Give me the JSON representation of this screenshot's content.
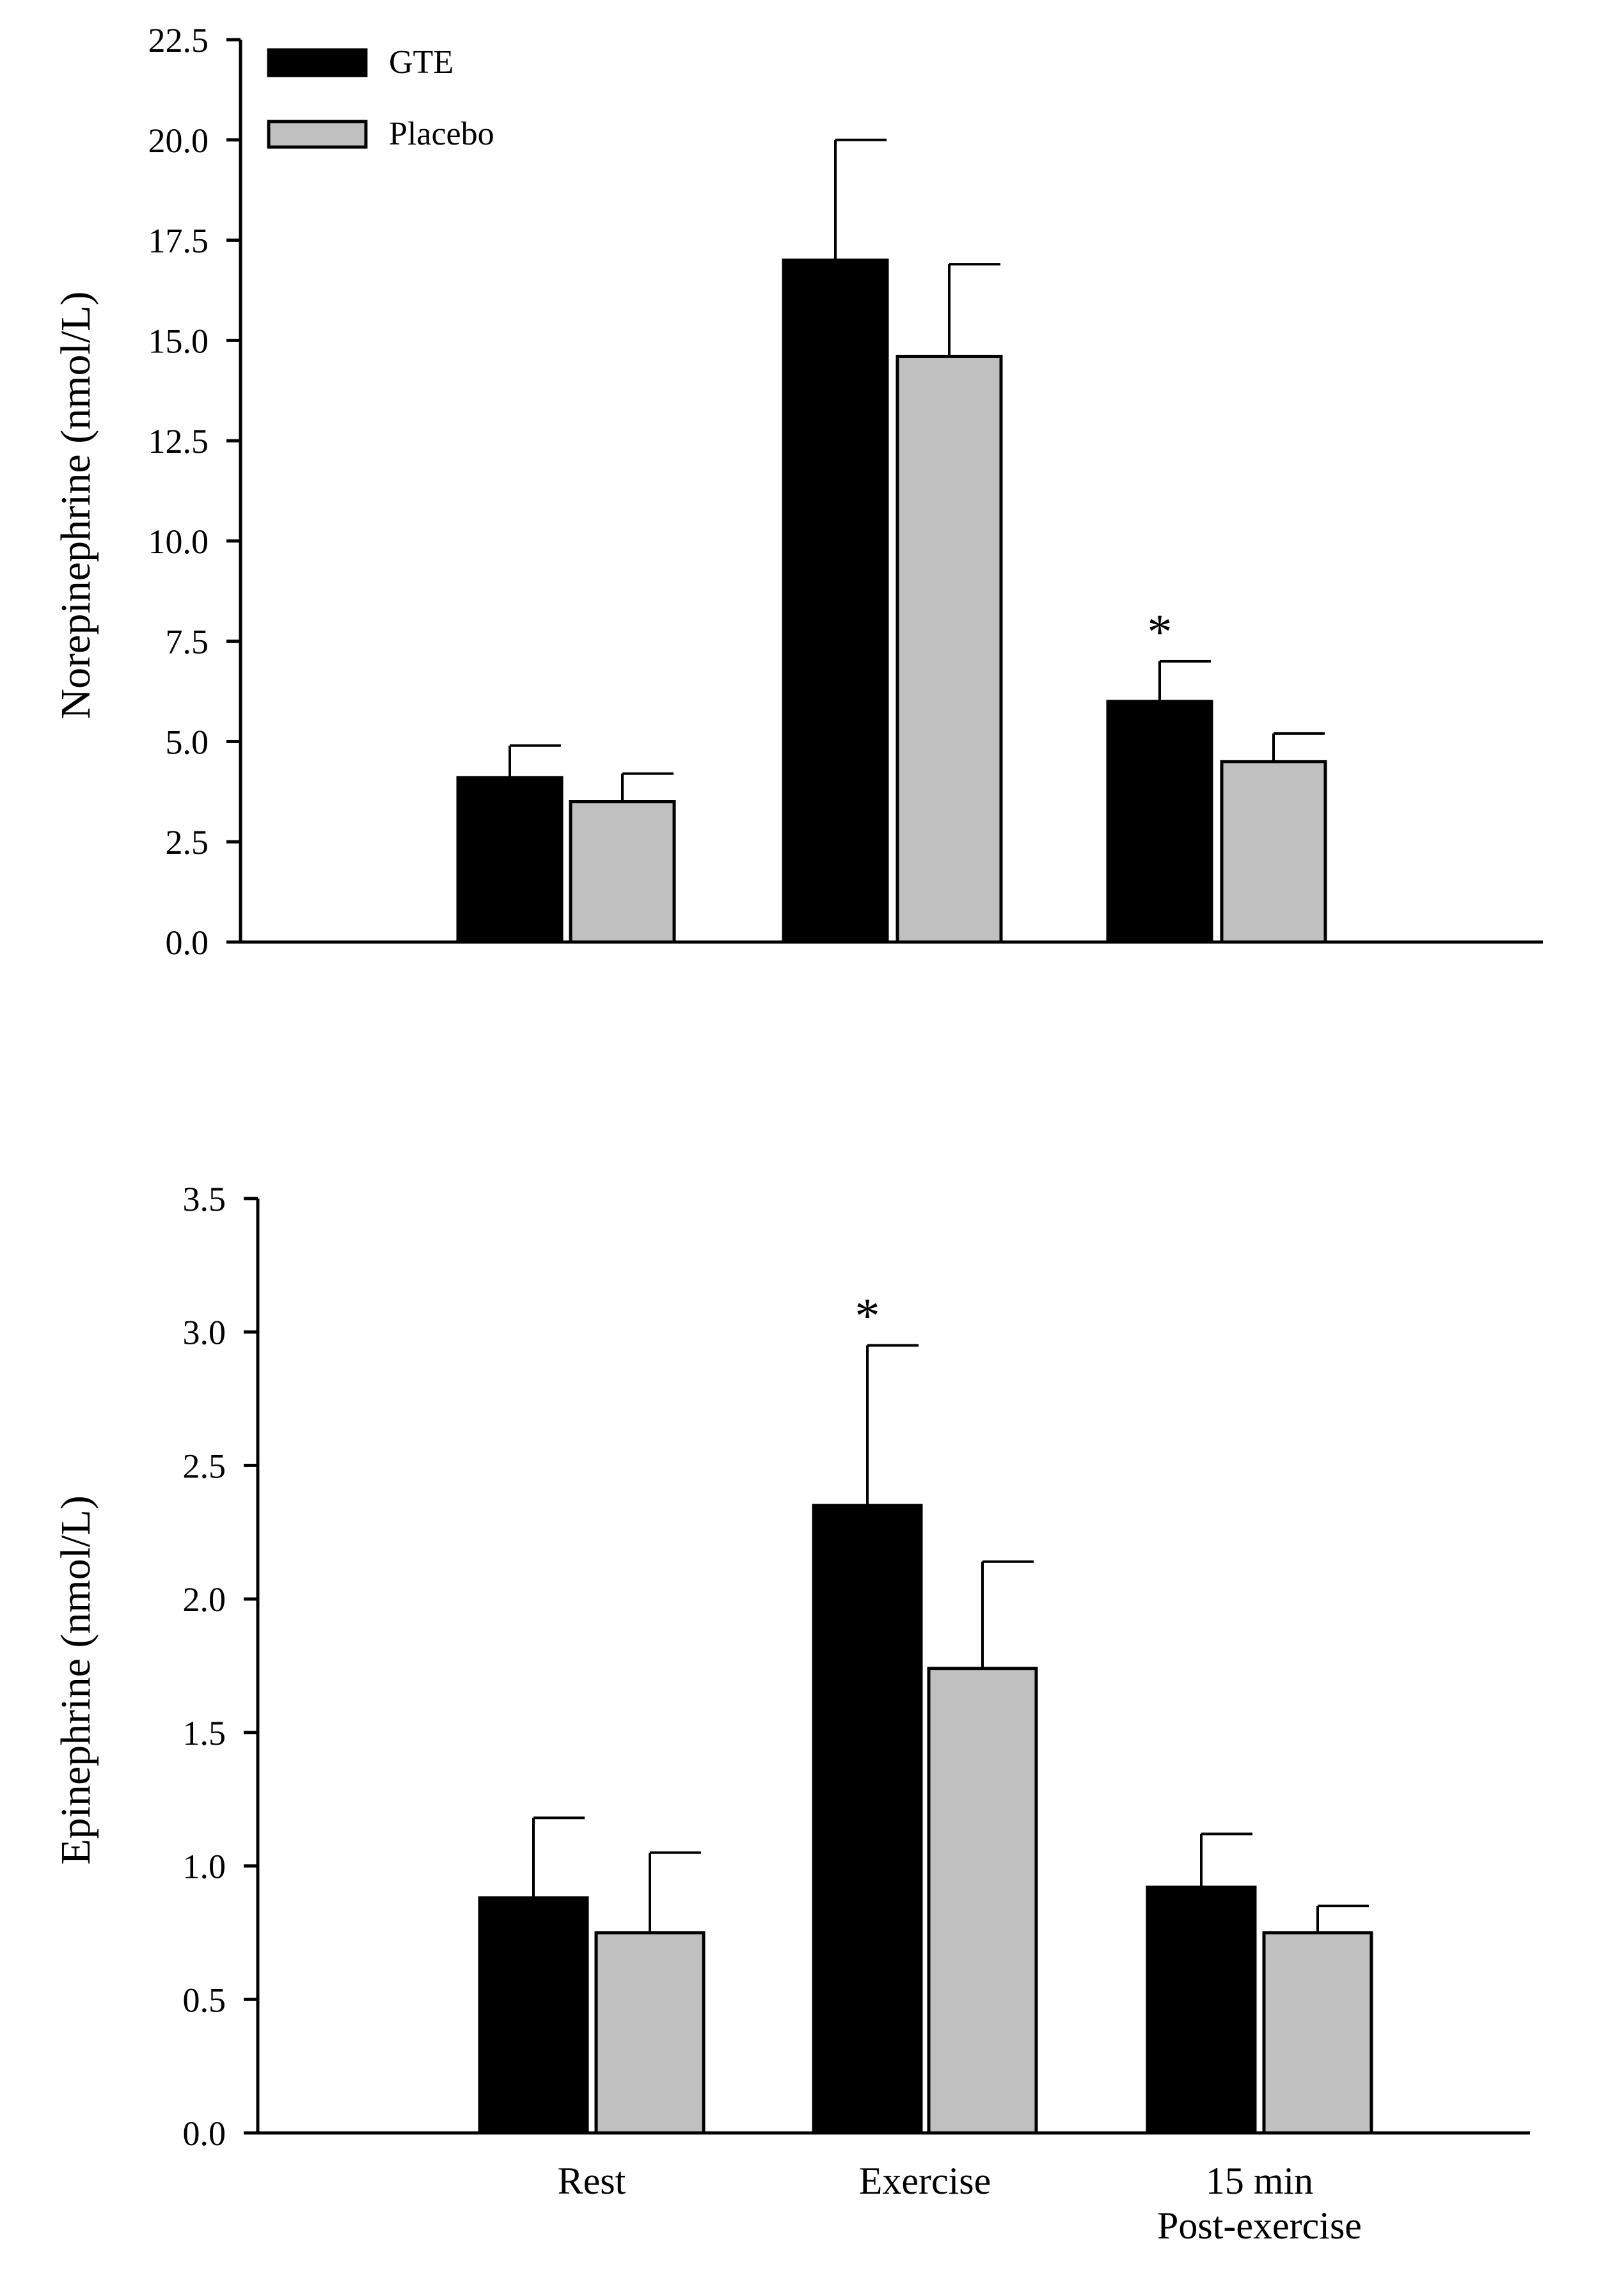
{
  "colors": {
    "gte": "#000000",
    "placebo": "#c0c0c0",
    "axis": "#000000",
    "background": "#ffffff"
  },
  "legend": [
    {
      "name": "GTE",
      "color": "#000000"
    },
    {
      "name": "Placebo",
      "color": "#c0c0c0"
    }
  ],
  "chart_data": [
    {
      "type": "bar",
      "title": "",
      "xlabel": "",
      "ylabel": "Norepinephrine (nmol/L)",
      "ylim": [
        0,
        22.5
      ],
      "yticks": [
        "0.0",
        "2.5",
        "5.0",
        "7.5",
        "10.0",
        "12.5",
        "15.0",
        "17.5",
        "20.0",
        "22.5"
      ],
      "categories": [
        "Rest",
        "Exercise",
        "15 min Post-exercise"
      ],
      "show_category_labels": false,
      "series": [
        {
          "name": "GTE",
          "values": [
            4.1,
            17.0,
            6.0
          ],
          "errors": [
            0.8,
            3.0,
            1.0
          ]
        },
        {
          "name": "Placebo",
          "values": [
            3.5,
            14.6,
            4.5
          ],
          "errors": [
            0.7,
            2.3,
            0.7
          ]
        }
      ],
      "annotations": [
        {
          "text": "*",
          "category_index": 2,
          "series": "GTE"
        }
      ],
      "legend_position": "top-left"
    },
    {
      "type": "bar",
      "title": "",
      "xlabel": "",
      "ylabel": "Epinephrine (nmol/L)",
      "ylim": [
        0,
        3.5
      ],
      "yticks": [
        "0.0",
        "0.5",
        "1.0",
        "1.5",
        "2.0",
        "2.5",
        "3.0",
        "3.5"
      ],
      "categories": [
        "Rest",
        "Exercise",
        "15 min Post-exercise"
      ],
      "category_label_lines": [
        [
          "Rest"
        ],
        [
          "Exercise"
        ],
        [
          "15 min",
          "Post-exercise"
        ]
      ],
      "show_category_labels": true,
      "series": [
        {
          "name": "GTE",
          "values": [
            0.88,
            2.35,
            0.92
          ],
          "errors": [
            0.3,
            0.6,
            0.2
          ]
        },
        {
          "name": "Placebo",
          "values": [
            0.75,
            1.74,
            0.75
          ],
          "errors": [
            0.3,
            0.4,
            0.1
          ]
        }
      ],
      "annotations": [
        {
          "text": "*",
          "category_index": 1,
          "series": "GTE"
        }
      ],
      "legend_position": "none"
    }
  ]
}
